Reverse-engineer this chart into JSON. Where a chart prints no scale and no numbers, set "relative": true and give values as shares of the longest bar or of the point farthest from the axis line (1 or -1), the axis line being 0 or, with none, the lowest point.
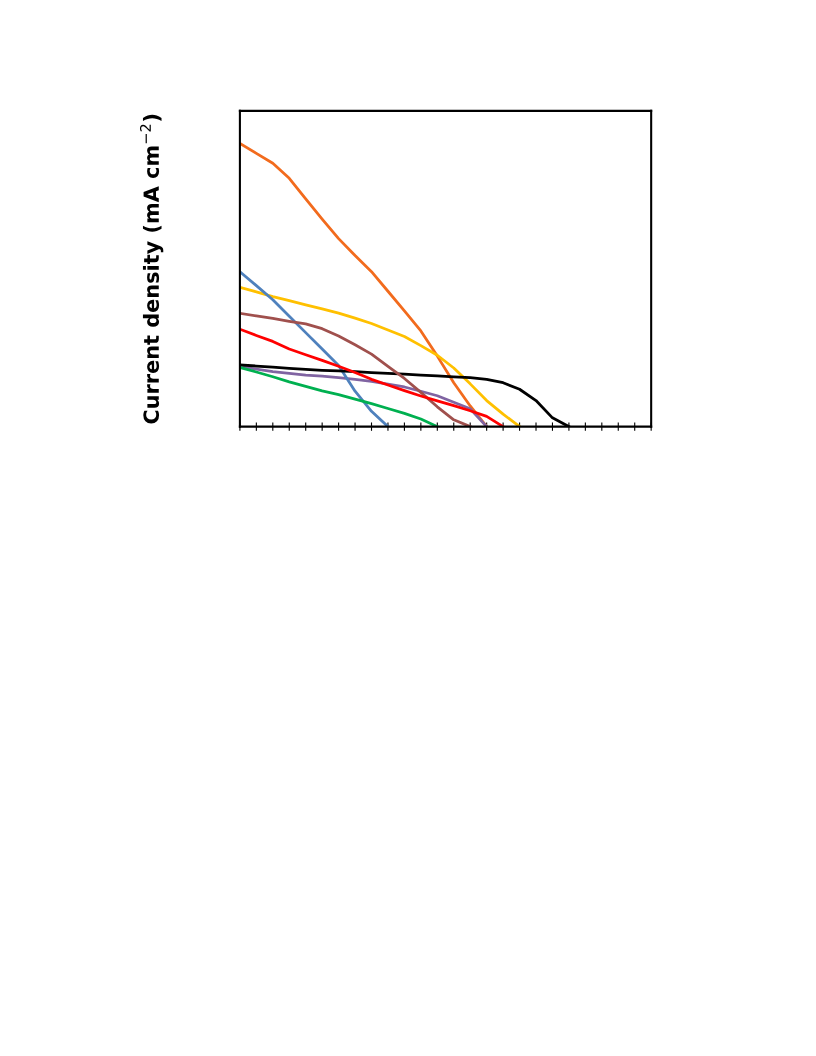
{
  "chart_data": {
    "type": "line",
    "relative": true,
    "ylabel": "Current density (mA cm$^{−2}$)",
    "categories": [
      null,
      null,
      null,
      null,
      null,
      null,
      null,
      null,
      null,
      null,
      null,
      null,
      null,
      null,
      null,
      null,
      null,
      null,
      null,
      null,
      null,
      null,
      null,
      null,
      null,
      null
    ],
    "grid": false,
    "marker": "none",
    "line_style": "solid",
    "series": [
      {
        "color": "#f26b1d",
        "values": [
          1,
          0.965,
          0.93,
          0.877,
          0.804,
          0.733,
          0.664,
          0.604,
          0.547,
          0.478,
          0.409,
          0.338,
          0.249,
          0.155,
          0.073,
          0,
          null,
          null,
          null,
          null,
          null,
          null,
          null,
          null,
          null,
          null
        ]
      },
      {
        "color": "#ffc000",
        "values": [
          0.492,
          0.476,
          0.459,
          0.445,
          0.43,
          0.416,
          0.401,
          0.383,
          0.364,
          0.341,
          0.318,
          0.286,
          0.252,
          0.207,
          0.151,
          0.092,
          0.044,
          0,
          null,
          null,
          null,
          null,
          null,
          null,
          null,
          null
        ]
      },
      {
        "color": "#8064a2",
        "values": [
          0.212,
          0.203,
          0.194,
          0.188,
          0.182,
          0.178,
          0.173,
          0.167,
          0.16,
          0.15,
          0.14,
          0.125,
          0.109,
          0.086,
          0.063,
          0,
          null,
          null,
          null,
          null,
          null,
          null,
          null,
          null,
          null,
          null
        ]
      },
      {
        "color": "#4f81bd",
        "values": [
          0.547,
          0.498,
          0.448,
          0.39,
          0.332,
          0.274,
          0.216,
          0.125,
          0.054,
          0,
          null,
          null,
          null,
          null,
          null,
          null,
          null,
          null,
          null,
          null,
          null,
          null,
          null,
          null,
          null,
          null
        ]
      },
      {
        "color": "#000000",
        "values": [
          0.218,
          0.214,
          0.21,
          0.206,
          0.202,
          0.199,
          0.197,
          0.194,
          0.191,
          0.188,
          0.185,
          0.182,
          0.179,
          0.176,
          0.173,
          0.167,
          0.155,
          0.132,
          0.092,
          0.031,
          0,
          null,
          null,
          null,
          null,
          null
        ]
      },
      {
        "color": "#a0504d",
        "values": [
          0.4,
          0.391,
          0.382,
          0.372,
          0.363,
          0.346,
          0.32,
          0.289,
          0.256,
          0.213,
          0.17,
          0.121,
          0.07,
          0.024,
          0,
          null,
          null,
          null,
          null,
          null,
          null,
          null,
          null,
          null,
          null,
          null
        ]
      },
      {
        "color": "#ff0000",
        "values": [
          0.344,
          0.322,
          0.301,
          0.274,
          0.254,
          0.234,
          0.213,
          0.191,
          0.167,
          0.147,
          0.127,
          0.108,
          0.091,
          0.074,
          0.056,
          0.036,
          0,
          null,
          null,
          null,
          null,
          null,
          null,
          null,
          null,
          null
        ]
      },
      {
        "color": "#00b050",
        "values": [
          0.209,
          0.193,
          0.176,
          0.158,
          0.142,
          0.126,
          0.113,
          0.097,
          0.081,
          0.064,
          0.047,
          0.027,
          0,
          null,
          null,
          null,
          null,
          null,
          null,
          null,
          null,
          null,
          null,
          null,
          null,
          null
        ]
      }
    ]
  }
}
